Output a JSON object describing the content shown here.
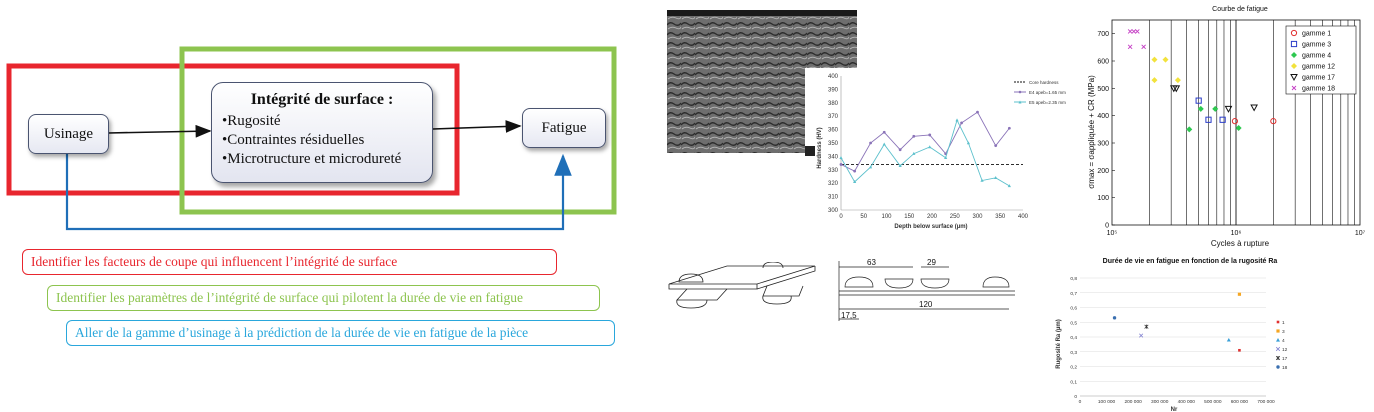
{
  "diagram": {
    "nodes": {
      "usinage": "Usinage",
      "integrite_title": "Intégrité de surface :",
      "integrite_items": [
        "•Rugosité",
        "•Contraintes résiduelles",
        "•Microtructure et microdureté"
      ],
      "fatigue": "Fatigue"
    },
    "objectives": [
      {
        "text": "Identifier les facteurs de coupe qui influencent l’intégrité de surface",
        "color": "#e8262e"
      },
      {
        "text": "Identifier les paramètres de l’intégrité de surface qui pilotent la durée de vie en fatigue",
        "color": "#8dc44f"
      },
      {
        "text": "Aller de la gamme d’usinage à la prédiction de la durée de vie en fatigue de la pièce",
        "color": "#2aa7dc"
      }
    ],
    "colors": {
      "red_frame": "#e8262e",
      "green_frame": "#8dc44f",
      "blue_arrow": "#1f6fb8"
    }
  },
  "hardness_chart": {
    "chart_data": {
      "type": "line",
      "xlabel": "Depth below surface (µm)",
      "ylabel": "Hardness (HV)",
      "xlim": [
        0,
        400
      ],
      "ylim": [
        300,
        400
      ],
      "xticks": [
        0,
        50,
        100,
        150,
        200,
        250,
        300,
        350,
        400
      ],
      "yticks": [
        300,
        310,
        320,
        330,
        340,
        350,
        360,
        370,
        380,
        390,
        400
      ],
      "reference": {
        "name": "Core hardness",
        "value": 334
      },
      "series": [
        {
          "name": "E4 apeb=1.65 mm",
          "color": "#8a73b8",
          "x": [
            0,
            30,
            65,
            95,
            130,
            160,
            195,
            230,
            265,
            300,
            340,
            370
          ],
          "y": [
            334,
            329,
            350,
            358,
            345,
            355,
            356,
            342,
            365,
            373,
            348,
            361
          ]
        },
        {
          "name": "E5 apeb=2.35 mm",
          "color": "#5cc0cc",
          "x": [
            0,
            30,
            65,
            95,
            130,
            160,
            195,
            230,
            255,
            280,
            310,
            340,
            370
          ],
          "y": [
            339,
            321,
            332,
            349,
            333,
            342,
            347,
            339,
            367,
            350,
            322,
            324,
            318
          ]
        }
      ]
    }
  },
  "wohler_chart": {
    "chart_data": {
      "type": "scatter",
      "title": "Courbe de fatigue",
      "xlabel": "Cycles à rupture",
      "ylabel": "σmax = σappliquée + CR (MPa)",
      "xscale": "log",
      "xlim": [
        100000,
        10000000
      ],
      "ylim": [
        0,
        750
      ],
      "xtick_labels": [
        "10⁵",
        "10⁶",
        "10⁷"
      ],
      "yticks": [
        0,
        100,
        200,
        300,
        400,
        500,
        600,
        700
      ],
      "legend_position": "top-right",
      "series": [
        {
          "name": "gamme 1",
          "marker": "circle",
          "color": "#e03030",
          "x": [
            980000,
            2000000
          ],
          "y": [
            380,
            380
          ]
        },
        {
          "name": "gamme 3",
          "marker": "square",
          "color": "#2a3cc8",
          "x": [
            500000,
            600000,
            780000
          ],
          "y": [
            455,
            385,
            385
          ]
        },
        {
          "name": "gamme 4",
          "marker": "diamond",
          "color": "#2ec850",
          "x": [
            420000,
            520000,
            680000,
            1050000
          ],
          "y": [
            350,
            425,
            425,
            355
          ]
        },
        {
          "name": "gamme 12",
          "marker": "diamond",
          "color": "#f2e23c",
          "x": [
            220000,
            270000,
            340000,
            220000
          ],
          "y": [
            605,
            605,
            530,
            530
          ]
        },
        {
          "name": "gamme 17",
          "marker": "triangle-down",
          "color": "#111111",
          "x": [
            315000,
            330000,
            870000,
            1400000
          ],
          "y": [
            500,
            500,
            425,
            430
          ]
        },
        {
          "name": "gamme 18",
          "marker": "x",
          "color": "#c43cc4",
          "x": [
            140000,
            150000,
            160000,
            140000,
            180000
          ],
          "y": [
            708,
            708,
            708,
            652,
            652
          ]
        }
      ]
    }
  },
  "ra_chart": {
    "chart_data": {
      "type": "scatter",
      "title": "Durée de vie en fatigue en fonction de la rugosité Ra",
      "xlabel": "Nr",
      "ylabel": "Rugosité Ra (µm)",
      "xlim": [
        0,
        700000
      ],
      "ylim": [
        0,
        0.8
      ],
      "xticks": [
        "0",
        "100 000",
        "200 000",
        "300 000",
        "400 000",
        "500 000",
        "600 000",
        "700 000"
      ],
      "yticks": [
        "0",
        "0,1",
        "0,2",
        "0,3",
        "0,4",
        "0,5",
        "0,6",
        "0,7",
        "0,8"
      ],
      "legend_position": "right",
      "series": [
        {
          "name": "1",
          "color": "#e03030",
          "x": [
            600000
          ],
          "y": [
            0.31
          ]
        },
        {
          "name": "3",
          "color": "#f5a623",
          "x": [
            600000
          ],
          "y": [
            0.69
          ]
        },
        {
          "name": "4",
          "color": "#3aa0d8",
          "x": [
            560000
          ],
          "y": [
            0.38
          ]
        },
        {
          "name": "12",
          "color": "#8080d0",
          "x": [
            230000
          ],
          "y": [
            0.41
          ]
        },
        {
          "name": "17",
          "color": "#333333",
          "x": [
            250000
          ],
          "y": [
            0.47
          ]
        },
        {
          "name": "18",
          "color": "#3a6fb0",
          "x": [
            130000
          ],
          "y": [
            0.53
          ]
        }
      ]
    }
  },
  "specimen": {
    "dimensions": [
      "63",
      "29",
      "120",
      "17,5"
    ]
  }
}
